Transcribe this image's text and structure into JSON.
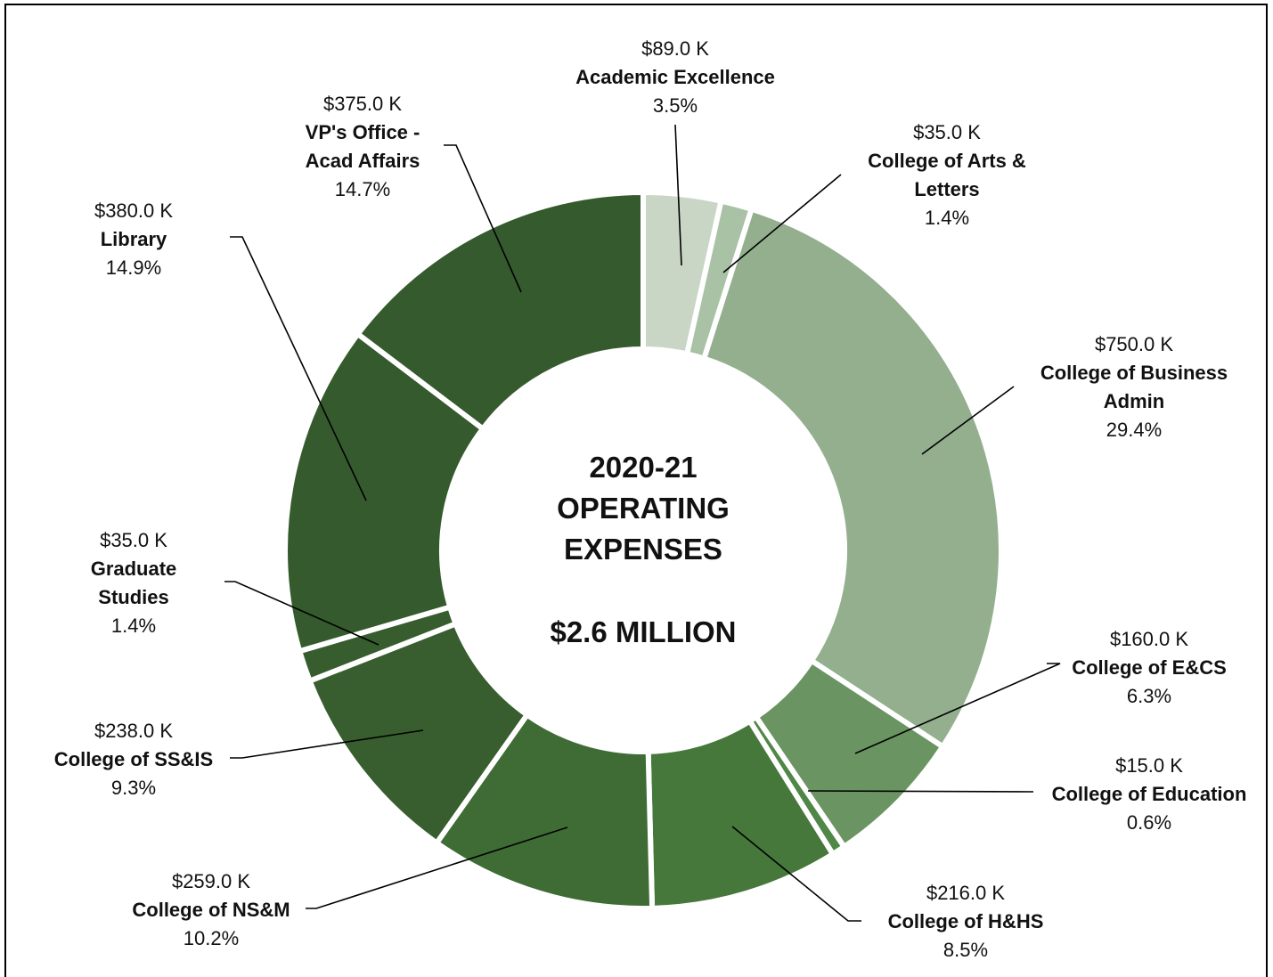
{
  "chart_data": {
    "type": "pie",
    "variant": "donut",
    "title_lines": [
      "2020-21",
      "OPERATING",
      "EXPENSES"
    ],
    "total_label": "$2.6 MILLION",
    "slices": [
      {
        "amount": "$89.0 K",
        "name_lines": [
          "Academic Excellence"
        ],
        "percent_label": "3.5%",
        "value": 3.5,
        "color": "#c9d6c6"
      },
      {
        "amount": "$35.0 K",
        "name_lines": [
          "College of Arts &",
          "Letters"
        ],
        "percent_label": "1.4%",
        "value": 1.4,
        "color": "#a9c1a5"
      },
      {
        "amount": "$750.0 K",
        "name_lines": [
          "College of Business",
          "Admin"
        ],
        "percent_label": "29.4%",
        "value": 29.4,
        "color": "#93af8e"
      },
      {
        "amount": "$160.0 K",
        "name_lines": [
          "College of E&CS"
        ],
        "percent_label": "6.3%",
        "value": 6.3,
        "color": "#6a9562"
      },
      {
        "amount": "$15.0 K",
        "name_lines": [
          "College of Education"
        ],
        "percent_label": "0.6%",
        "value": 0.6,
        "color": "#4f8747"
      },
      {
        "amount": "$216.0 K",
        "name_lines": [
          "College of H&HS"
        ],
        "percent_label": "8.5%",
        "value": 8.5,
        "color": "#46783b"
      },
      {
        "amount": "$259.0 K",
        "name_lines": [
          "College of NS&M"
        ],
        "percent_label": "10.2%",
        "value": 10.2,
        "color": "#3f6c35"
      },
      {
        "amount": "$238.0 K",
        "name_lines": [
          "College of SS&IS"
        ],
        "percent_label": "9.3%",
        "value": 9.3,
        "color": "#385d2e"
      },
      {
        "amount": "$35.0 K",
        "name_lines": [
          "Graduate",
          "Studies"
        ],
        "percent_label": "1.4%",
        "value": 1.4,
        "color": "#375c2e"
      },
      {
        "amount": "$380.0 K",
        "name_lines": [
          "Library"
        ],
        "percent_label": "14.9%",
        "value": 14.9,
        "color": "#355a2d"
      },
      {
        "amount": "$375.0 K",
        "name_lines": [
          "VP's Office -",
          "Acad Affairs"
        ],
        "percent_label": "14.7%",
        "value": 14.7,
        "color": "#355a2d"
      }
    ]
  }
}
